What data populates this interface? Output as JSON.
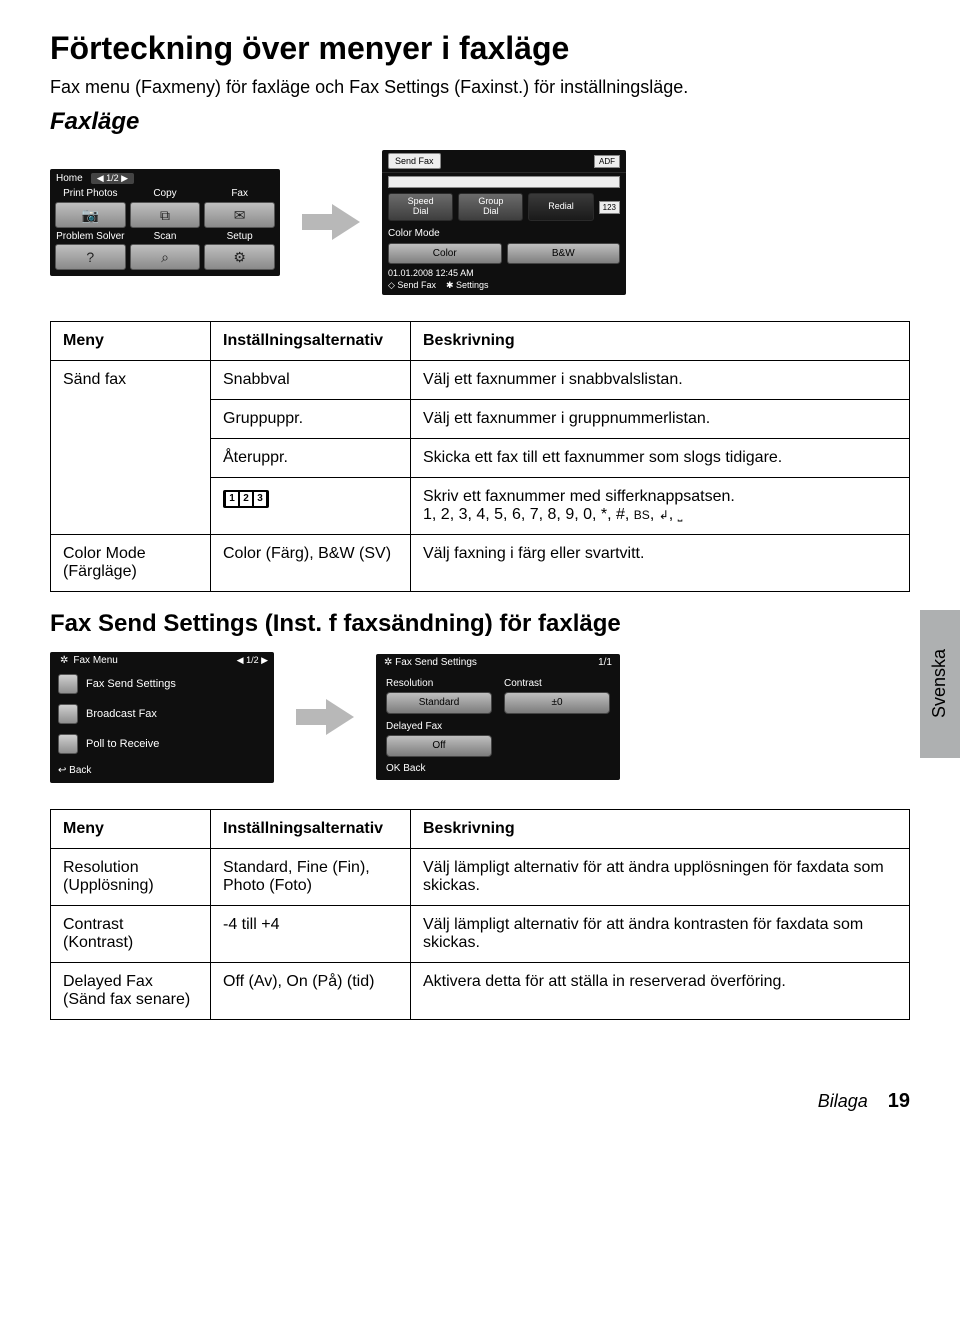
{
  "page": {
    "title": "Förteckning över menyer i faxläge",
    "subtitle": "Fax menu (Faxmeny) för faxläge och Fax Settings (Faxinst.) för inställningsläge.",
    "mode_heading": "Faxläge",
    "section2_heading": "Fax Send Settings (Inst. f faxsändning) för faxläge",
    "side_tab": "Svenska",
    "footer_label": "Bilaga",
    "footer_page": "19"
  },
  "arrow_color": "#b8b8b8",
  "home_screen": {
    "home_label": "Home",
    "page_indicator": "◀ 1/2 ▶",
    "cells": [
      {
        "label": "Print Photos",
        "icon": "📷"
      },
      {
        "label": "Copy",
        "icon": "⧉"
      },
      {
        "label": "Fax",
        "icon": "✉"
      },
      {
        "label": "Problem Solver",
        "icon": "?"
      },
      {
        "label": "Scan",
        "icon": "⌕"
      },
      {
        "label": "Setup",
        "icon": "⚙"
      }
    ]
  },
  "sendfax_screen": {
    "title": "Send Fax",
    "adf": "ADF",
    "dial_buttons": [
      {
        "l1": "Speed",
        "l2": "Dial"
      },
      {
        "l1": "Group",
        "l2": "Dial"
      },
      {
        "l1": "Redial",
        "l2": ""
      }
    ],
    "num_badge": "123",
    "color_mode_label": "Color Mode",
    "color_buttons": [
      "Color",
      "B&W"
    ],
    "date": "01.01.2008 12:45 AM",
    "foot1": "◇ Send Fax",
    "foot2": "✱ Settings"
  },
  "faxmenu_screen": {
    "title": "Fax Menu",
    "page": "◀  1/2  ▶",
    "items": [
      "Fax Send Settings",
      "Broadcast Fax",
      "Poll to Receive"
    ],
    "back": "↩ Back"
  },
  "fss_screen": {
    "title": "Fax Send Settings",
    "page": "1/1",
    "cols": [
      {
        "label": "Resolution",
        "value": "Standard"
      },
      {
        "label": "Contrast",
        "value": "±0"
      }
    ],
    "delayed_label": "Delayed Fax",
    "delayed_value": "Off",
    "back": "OK Back"
  },
  "table1": {
    "head": [
      "Meny",
      "Inställningsalternativ",
      "Beskrivning"
    ],
    "r1c1": "Sänd fax",
    "r1": {
      "opt": "Snabbval",
      "desc": "Välj ett faxnummer i snabbvalslistan."
    },
    "r2": {
      "opt": "Gruppuppr.",
      "desc": "Välj ett faxnummer i gruppnummerlistan."
    },
    "r3": {
      "opt": "Återuppr.",
      "desc": "Skicka ett fax till ett faxnummer som slogs tidigare."
    },
    "r4": {
      "desc_line1": "Skriv ett faxnummer med sifferknappsatsen.",
      "desc_line2": "1, 2, 3, 4, 5, 6, 7, 8, 9, 0, *, #, ",
      "sym1": "BS",
      "sym_sep": ", ",
      "sym2": "↲",
      "sym_sep2": ", ",
      "sym3": "⎵"
    },
    "r5": {
      "menu": "Color Mode (Färgläge)",
      "opt": "Color (Färg), B&W (SV)",
      "desc": "Välj faxning i färg eller svartvitt."
    }
  },
  "table2": {
    "head": [
      "Meny",
      "Inställningsalternativ",
      "Beskrivning"
    ],
    "rows": [
      {
        "menu": "Resolution (Upplösning)",
        "opt": "Standard, Fine (Fin), Photo (Foto)",
        "desc": "Välj lämpligt alternativ för att ändra upplösningen för faxdata som skickas."
      },
      {
        "menu": "Contrast (Kontrast)",
        "opt": "-4 till +4",
        "desc": "Välj lämpligt alternativ för att ändra kontrasten för faxdata som skickas."
      },
      {
        "menu": "Delayed Fax (Sänd fax senare)",
        "opt": "Off (Av), On (På) (tid)",
        "desc": "Aktivera detta för att ställa in reserverad överföring."
      }
    ]
  }
}
